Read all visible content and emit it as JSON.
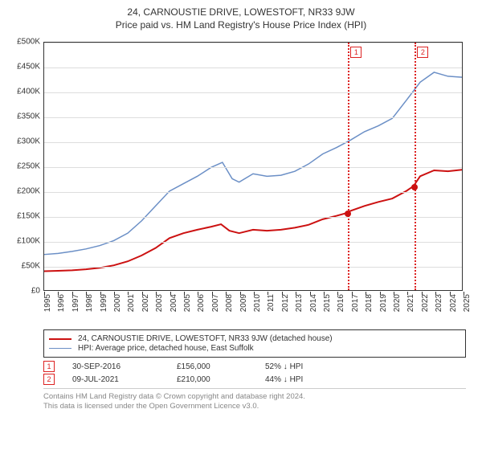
{
  "title": "24, CARNOUSTIE DRIVE, LOWESTOFT, NR33 9JW",
  "subtitle": "Price paid vs. HM Land Registry's House Price Index (HPI)",
  "chart": {
    "type": "line",
    "background_color": "#ffffff",
    "grid_color": "#dddddd",
    "y": {
      "min": 0,
      "max": 500000,
      "step": 50000,
      "labels": [
        "£0",
        "£50K",
        "£100K",
        "£150K",
        "£200K",
        "£250K",
        "£300K",
        "£350K",
        "£400K",
        "£450K",
        "£500K"
      ]
    },
    "x": {
      "years": [
        1995,
        1996,
        1997,
        1998,
        1999,
        2000,
        2001,
        2002,
        2003,
        2004,
        2005,
        2006,
        2007,
        2008,
        2009,
        2010,
        2011,
        2012,
        2013,
        2014,
        2015,
        2016,
        2017,
        2018,
        2019,
        2020,
        2021,
        2022,
        2023,
        2024,
        2025
      ]
    },
    "series": [
      {
        "name": "24, CARNOUSTIE DRIVE, LOWESTOFT, NR33 9JW (detached house)",
        "color": "#cc1111",
        "line_width": 2,
        "data": [
          [
            1995,
            38000
          ],
          [
            1996,
            39000
          ],
          [
            1997,
            40000
          ],
          [
            1998,
            42000
          ],
          [
            1999,
            45000
          ],
          [
            2000,
            50000
          ],
          [
            2001,
            58000
          ],
          [
            2002,
            70000
          ],
          [
            2003,
            85000
          ],
          [
            2004,
            105000
          ],
          [
            2005,
            115000
          ],
          [
            2006,
            122000
          ],
          [
            2007,
            128000
          ],
          [
            2007.7,
            133000
          ],
          [
            2008.3,
            120000
          ],
          [
            2009,
            115000
          ],
          [
            2010,
            122000
          ],
          [
            2011,
            120000
          ],
          [
            2012,
            122000
          ],
          [
            2013,
            126000
          ],
          [
            2014,
            132000
          ],
          [
            2015,
            143000
          ],
          [
            2016,
            150000
          ],
          [
            2016.75,
            156000
          ],
          [
            2017,
            160000
          ],
          [
            2018,
            170000
          ],
          [
            2019,
            178000
          ],
          [
            2020,
            185000
          ],
          [
            2021,
            200000
          ],
          [
            2021.52,
            210000
          ],
          [
            2022,
            230000
          ],
          [
            2023,
            242000
          ],
          [
            2024,
            240000
          ],
          [
            2025,
            243000
          ]
        ]
      },
      {
        "name": "HPI: Average price, detached house, East Suffolk",
        "color": "#6b8fc6",
        "line_width": 1.5,
        "data": [
          [
            1995,
            72000
          ],
          [
            1996,
            74000
          ],
          [
            1997,
            78000
          ],
          [
            1998,
            83000
          ],
          [
            1999,
            90000
          ],
          [
            2000,
            100000
          ],
          [
            2001,
            115000
          ],
          [
            2002,
            140000
          ],
          [
            2003,
            170000
          ],
          [
            2004,
            200000
          ],
          [
            2005,
            215000
          ],
          [
            2006,
            230000
          ],
          [
            2007,
            248000
          ],
          [
            2007.8,
            258000
          ],
          [
            2008.5,
            225000
          ],
          [
            2009,
            218000
          ],
          [
            2010,
            235000
          ],
          [
            2011,
            230000
          ],
          [
            2012,
            232000
          ],
          [
            2013,
            240000
          ],
          [
            2014,
            255000
          ],
          [
            2015,
            275000
          ],
          [
            2016,
            288000
          ],
          [
            2017,
            303000
          ],
          [
            2018,
            320000
          ],
          [
            2019,
            332000
          ],
          [
            2020,
            347000
          ],
          [
            2021,
            383000
          ],
          [
            2022,
            420000
          ],
          [
            2023,
            440000
          ],
          [
            2024,
            432000
          ],
          [
            2025,
            430000
          ]
        ]
      }
    ],
    "transactions": [
      {
        "marker": "1",
        "year": 2016.75,
        "price": 156000,
        "date": "30-SEP-2016",
        "price_label": "£156,000",
        "delta": "52% ↓ HPI"
      },
      {
        "marker": "2",
        "year": 2021.52,
        "price": 210000,
        "date": "09-JUL-2021",
        "price_label": "£210,000",
        "delta": "44% ↓ HPI"
      }
    ],
    "marker_color": "#dd2222",
    "point_color": "#cc1111"
  },
  "legend": {
    "title": ""
  },
  "copyright": {
    "line1": "Contains HM Land Registry data © Crown copyright and database right 2024.",
    "line2": "This data is licensed under the Open Government Licence v3.0."
  }
}
